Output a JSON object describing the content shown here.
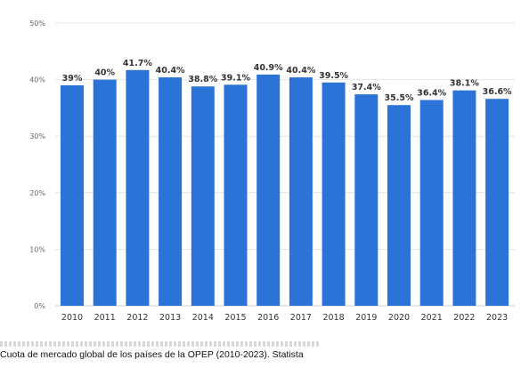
{
  "caption": "Cuota de mercado global de los países de la OPEP (2010-2023). Statista",
  "colors": {
    "bar": "#2b73d6",
    "grid": "#e4e4e4",
    "axis": "#cfcfcf"
  },
  "chart_data": {
    "type": "bar",
    "categories": [
      "2010",
      "2011",
      "2012",
      "2013",
      "2014",
      "2015",
      "2016",
      "2017",
      "2018",
      "2019",
      "2020",
      "2021",
      "2022",
      "2023"
    ],
    "values": [
      39,
      40,
      41.7,
      40.4,
      38.8,
      39.1,
      40.9,
      40.4,
      39.5,
      37.4,
      35.5,
      36.4,
      38.1,
      36.6
    ],
    "data_labels": [
      "39%",
      "40%",
      "41.7%",
      "40.4%",
      "38.8%",
      "39.1%",
      "40.9%",
      "40.4%",
      "39.5%",
      "37.4%",
      "35.5%",
      "36.4%",
      "38.1%",
      "36.6%"
    ],
    "y_ticks": [
      0,
      10,
      20,
      30,
      40,
      50
    ],
    "y_tick_labels": [
      "0%",
      "10%",
      "20%",
      "30%",
      "40%",
      "50%"
    ],
    "ylim": [
      0,
      50
    ],
    "grid": true,
    "legend": "none",
    "title": "",
    "xlabel": "",
    "ylabel": ""
  }
}
